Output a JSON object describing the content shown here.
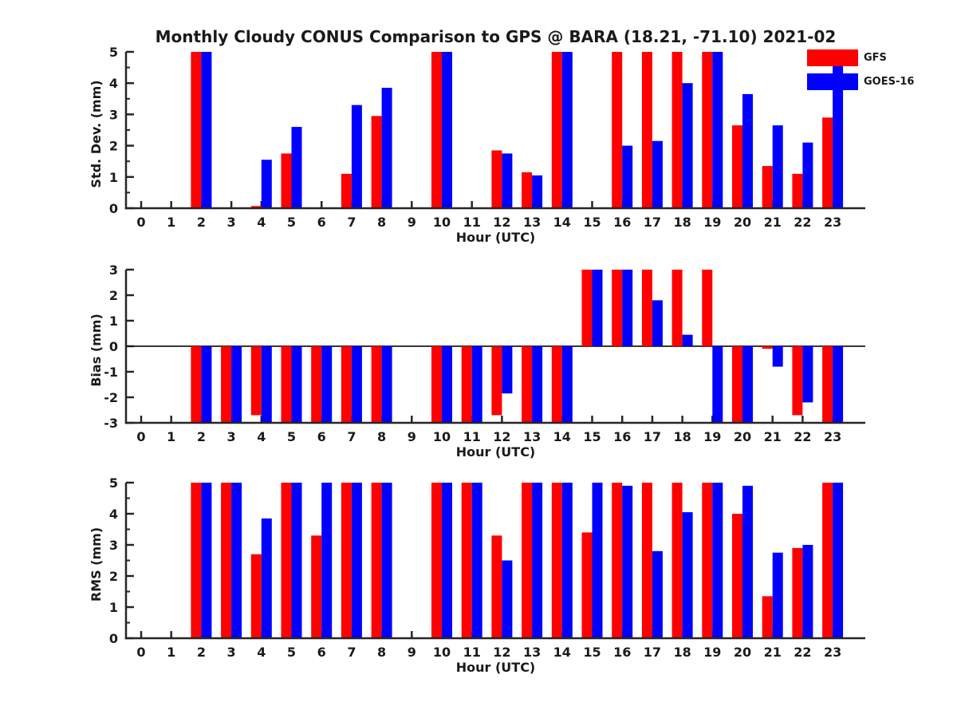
{
  "title": "Monthly Cloudy CONUS Comparison to GPS @ BARA (18.21, -71.10) 2021-02",
  "legend": {
    "position": "top-right",
    "items": [
      {
        "label": "GFS",
        "color": "#ff0000"
      },
      {
        "label": "GOES-16",
        "color": "#0000ff"
      }
    ]
  },
  "chart_data": [
    {
      "type": "bar",
      "name": "std-dev",
      "ylabel": "Std. Dev. (mm)",
      "xlabel": "Hour (UTC)",
      "ylim": [
        0,
        5
      ],
      "yticks": [
        0,
        1,
        2,
        3,
        4,
        5
      ],
      "minor_tick_step": 0.5,
      "grid": false,
      "categories": [
        0,
        1,
        2,
        3,
        4,
        5,
        6,
        7,
        8,
        9,
        10,
        11,
        12,
        13,
        14,
        15,
        16,
        17,
        18,
        19,
        20,
        21,
        22,
        23
      ],
      "series": [
        {
          "name": "GFS",
          "color": "#ff0000",
          "values": [
            null,
            null,
            5,
            null,
            0.07,
            1.75,
            null,
            1.1,
            2.95,
            null,
            5,
            null,
            1.85,
            1.15,
            5,
            null,
            5,
            5,
            5,
            5,
            2.65,
            1.35,
            1.1,
            2.9
          ]
        },
        {
          "name": "GOES-16",
          "color": "#0000ff",
          "values": [
            null,
            null,
            5,
            null,
            1.55,
            2.6,
            null,
            3.3,
            3.85,
            null,
            5,
            null,
            1.75,
            1.05,
            5,
            null,
            2.0,
            2.15,
            4.0,
            5,
            3.65,
            2.65,
            2.1,
            5
          ]
        }
      ]
    },
    {
      "type": "bar",
      "name": "bias",
      "ylabel": "Bias (mm)",
      "xlabel": "Hour (UTC)",
      "ylim": [
        -3,
        3
      ],
      "yticks": [
        -3,
        -2,
        -1,
        0,
        1,
        2,
        3
      ],
      "minor_tick_step": 0,
      "zero_line": true,
      "grid": false,
      "categories": [
        0,
        1,
        2,
        3,
        4,
        5,
        6,
        7,
        8,
        9,
        10,
        11,
        12,
        13,
        14,
        15,
        16,
        17,
        18,
        19,
        20,
        21,
        22,
        23
      ],
      "series": [
        {
          "name": "GFS",
          "color": "#ff0000",
          "values": [
            null,
            null,
            -3,
            -3,
            -2.7,
            -3,
            -3,
            -3,
            -3,
            null,
            -3,
            -3,
            -2.7,
            -3,
            -3,
            3,
            3,
            3,
            3,
            3,
            -3,
            -0.1,
            -2.7,
            -3
          ]
        },
        {
          "name": "GOES-16",
          "color": "#0000ff",
          "values": [
            null,
            null,
            -3,
            -3,
            -3,
            -3,
            -3,
            -3,
            -3,
            null,
            -3,
            -3,
            -1.85,
            -3,
            -3,
            3,
            3,
            1.8,
            0.45,
            -3,
            -3,
            -0.8,
            -2.2,
            -3
          ]
        }
      ]
    },
    {
      "type": "bar",
      "name": "rms",
      "ylabel": "RMS (mm)",
      "xlabel": "Hour (UTC)",
      "ylim": [
        0,
        5
      ],
      "yticks": [
        0,
        1,
        2,
        3,
        4,
        5
      ],
      "minor_tick_step": 0.5,
      "grid": false,
      "categories": [
        0,
        1,
        2,
        3,
        4,
        5,
        6,
        7,
        8,
        9,
        10,
        11,
        12,
        13,
        14,
        15,
        16,
        17,
        18,
        19,
        20,
        21,
        22,
        23
      ],
      "series": [
        {
          "name": "GFS",
          "color": "#ff0000",
          "values": [
            null,
            null,
            5,
            5,
            2.7,
            5,
            3.3,
            5,
            5,
            null,
            5,
            5,
            3.3,
            5,
            5,
            3.4,
            5,
            5,
            5,
            5,
            4.0,
            1.35,
            2.9,
            5
          ]
        },
        {
          "name": "GOES-16",
          "color": "#0000ff",
          "values": [
            null,
            null,
            5,
            5,
            3.85,
            5,
            5,
            5,
            5,
            null,
            5,
            5,
            2.5,
            5,
            5,
            5,
            4.9,
            2.8,
            4.05,
            5,
            4.9,
            2.75,
            3.0,
            5
          ]
        }
      ]
    }
  ]
}
